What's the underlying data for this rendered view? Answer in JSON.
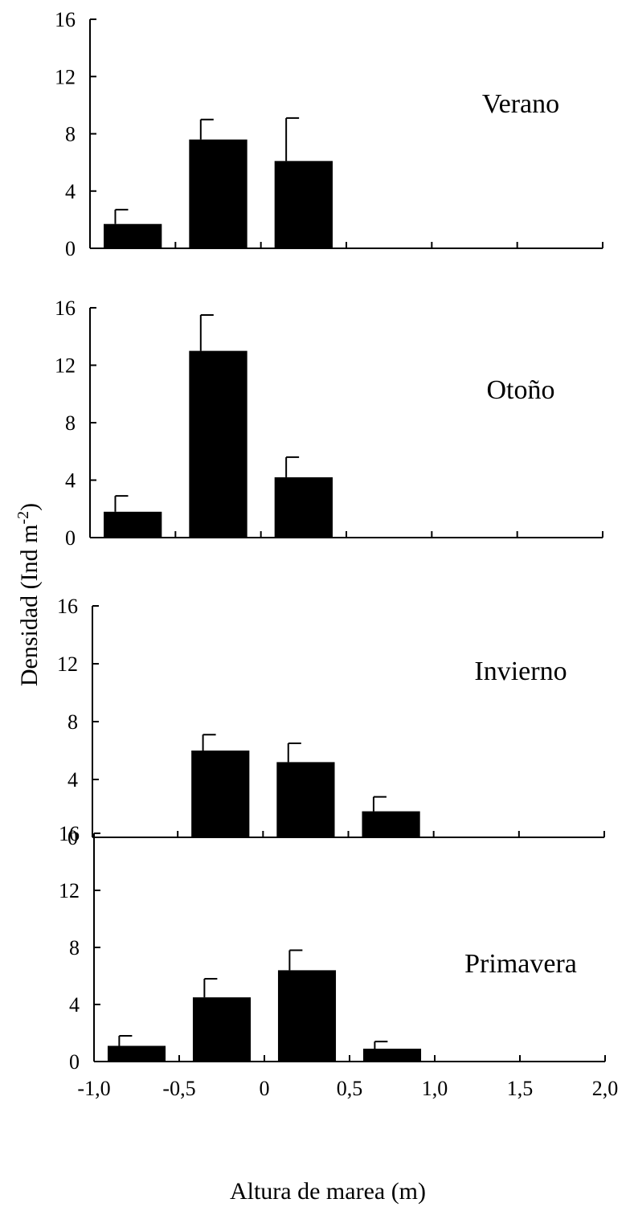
{
  "figure": {
    "ylabel_main": "Densidad (Ind m",
    "ylabel_exp": "-2",
    "ylabel_close": ")",
    "xlabel": "Altura de marea (m)"
  },
  "chart_data": [
    {
      "type": "bar",
      "annotation": "Verano",
      "ylim": [
        0,
        16
      ],
      "yticks": [
        "0",
        "4",
        "8",
        "12",
        "16"
      ],
      "xlim": [
        -1.0,
        2.0
      ],
      "xticks": [
        "-1,0",
        "-0,5",
        "0",
        "0,5",
        "1,0",
        "1,5",
        "2,0"
      ],
      "x": [
        -0.75,
        -0.25,
        0.25
      ],
      "values": [
        1.7,
        7.6,
        6.1
      ],
      "errors": [
        1.0,
        1.4,
        3.0
      ]
    },
    {
      "type": "bar",
      "annotation": "Otoño",
      "ylim": [
        0,
        16
      ],
      "yticks": [
        "0",
        "4",
        "8",
        "12",
        "16"
      ],
      "xlim": [
        -1.0,
        2.0
      ],
      "xticks": [
        "-1,0",
        "-0,5",
        "0",
        "0,5",
        "1,0",
        "1,5",
        "2,0"
      ],
      "x": [
        -0.75,
        -0.25,
        0.25
      ],
      "values": [
        1.8,
        13.0,
        4.2
      ],
      "errors": [
        1.1,
        2.5,
        1.4
      ]
    },
    {
      "type": "bar",
      "annotation": "Invierno",
      "ylim": [
        0,
        16
      ],
      "yticks": [
        "0",
        "4",
        "8",
        "12",
        "16"
      ],
      "xlim": [
        -1.0,
        2.0
      ],
      "xticks": [
        "-1,0",
        "-0,5",
        "0",
        "0,5",
        "1,0",
        "1,5",
        "2,0"
      ],
      "x": [
        -0.25,
        0.25,
        0.75
      ],
      "values": [
        6.0,
        5.2,
        1.8
      ],
      "errors": [
        1.1,
        1.3,
        1.0
      ]
    },
    {
      "type": "bar",
      "annotation": "Primavera",
      "ylim": [
        0,
        16
      ],
      "yticks": [
        "0",
        "4",
        "8",
        "12",
        "16"
      ],
      "xlim": [
        -1.0,
        2.0
      ],
      "xticks": [
        "-1,0",
        "-0,5",
        "0",
        "0,5",
        "1,0",
        "1,5",
        "2,0"
      ],
      "x": [
        -0.75,
        -0.25,
        0.25,
        0.75
      ],
      "values": [
        1.1,
        4.5,
        6.4,
        0.9
      ],
      "errors": [
        0.7,
        1.3,
        1.4,
        0.5
      ]
    }
  ]
}
